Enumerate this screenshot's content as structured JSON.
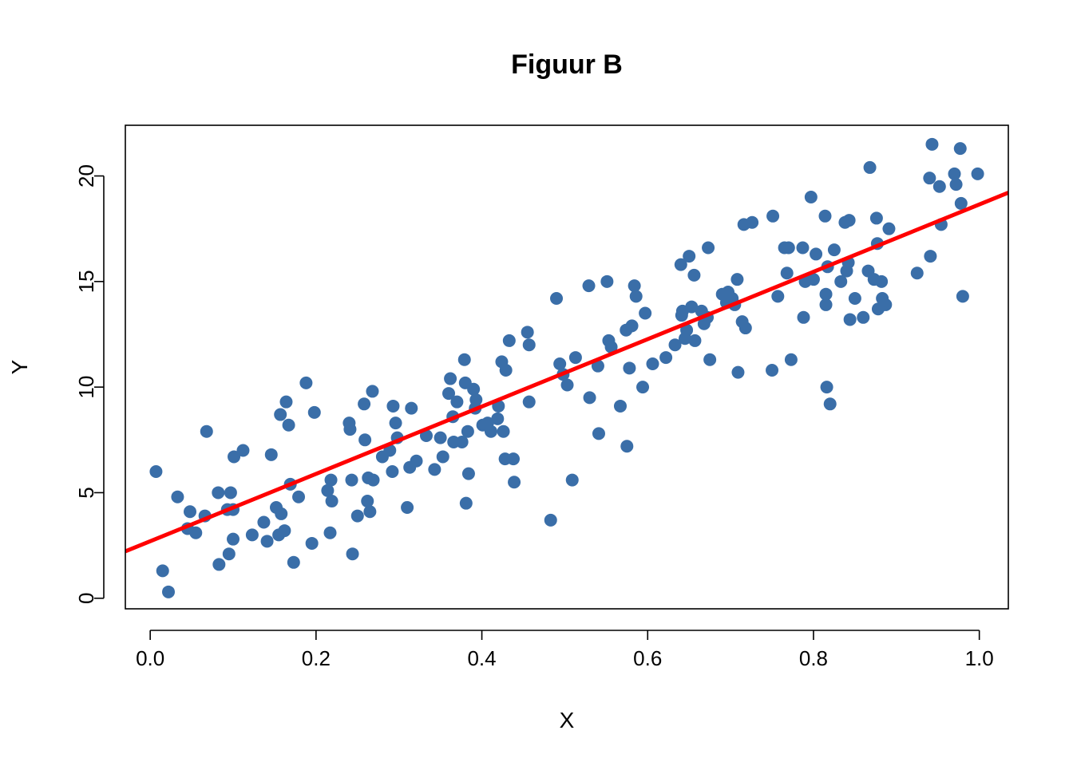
{
  "chart_data": {
    "type": "scatter",
    "title": "Figuur B",
    "xlabel": "X",
    "ylabel": "Y",
    "xlim": [
      -0.03,
      1.035
    ],
    "ylim": [
      -0.5,
      22.4
    ],
    "xticks": [
      0.0,
      0.2,
      0.4,
      0.6,
      0.8,
      1.0
    ],
    "xtick_labels": [
      "0.0",
      "0.2",
      "0.4",
      "0.6",
      "0.8",
      "1.0"
    ],
    "yticks": [
      0,
      5,
      10,
      15,
      20
    ],
    "ytick_labels": [
      "0",
      "5",
      "10",
      "15",
      "20"
    ],
    "grid": false,
    "point_color": "#3A6EA8",
    "line_color": "#FF0000",
    "regression_line": {
      "intercept": 2.7,
      "slope": 15.95
    },
    "points": [
      [
        0.007,
        6.0
      ],
      [
        0.015,
        1.3
      ],
      [
        0.022,
        0.3
      ],
      [
        0.033,
        4.8
      ],
      [
        0.045,
        3.3
      ],
      [
        0.048,
        4.1
      ],
      [
        0.055,
        3.1
      ],
      [
        0.066,
        3.9
      ],
      [
        0.068,
        7.9
      ],
      [
        0.082,
        5.0
      ],
      [
        0.083,
        1.6
      ],
      [
        0.093,
        4.2
      ],
      [
        0.095,
        2.1
      ],
      [
        0.097,
        5.0
      ],
      [
        0.1,
        4.2
      ],
      [
        0.101,
        6.7
      ],
      [
        0.1,
        2.8
      ],
      [
        0.112,
        7.0
      ],
      [
        0.123,
        3.0
      ],
      [
        0.137,
        3.6
      ],
      [
        0.141,
        2.7
      ],
      [
        0.146,
        6.8
      ],
      [
        0.152,
        4.3
      ],
      [
        0.155,
        3.0
      ],
      [
        0.157,
        8.7
      ],
      [
        0.158,
        4.0
      ],
      [
        0.162,
        3.2
      ],
      [
        0.164,
        9.3
      ],
      [
        0.167,
        8.2
      ],
      [
        0.169,
        5.4
      ],
      [
        0.173,
        1.7
      ],
      [
        0.179,
        4.8
      ],
      [
        0.188,
        10.2
      ],
      [
        0.195,
        2.6
      ],
      [
        0.198,
        8.8
      ],
      [
        0.214,
        5.1
      ],
      [
        0.217,
        3.1
      ],
      [
        0.218,
        5.6
      ],
      [
        0.219,
        4.6
      ],
      [
        0.24,
        8.3
      ],
      [
        0.241,
        8.0
      ],
      [
        0.243,
        5.6
      ],
      [
        0.244,
        2.1
      ],
      [
        0.25,
        3.9
      ],
      [
        0.258,
        9.2
      ],
      [
        0.259,
        7.5
      ],
      [
        0.262,
        4.6
      ],
      [
        0.263,
        5.7
      ],
      [
        0.265,
        4.1
      ],
      [
        0.268,
        9.8
      ],
      [
        0.269,
        5.6
      ],
      [
        0.28,
        6.7
      ],
      [
        0.289,
        7.0
      ],
      [
        0.292,
        6.0
      ],
      [
        0.293,
        9.1
      ],
      [
        0.296,
        8.3
      ],
      [
        0.298,
        7.6
      ],
      [
        0.31,
        4.3
      ],
      [
        0.313,
        6.2
      ],
      [
        0.315,
        9.0
      ],
      [
        0.321,
        6.5
      ],
      [
        0.333,
        7.7
      ],
      [
        0.343,
        6.1
      ],
      [
        0.35,
        7.6
      ],
      [
        0.353,
        6.7
      ],
      [
        0.36,
        9.7
      ],
      [
        0.362,
        10.4
      ],
      [
        0.365,
        8.6
      ],
      [
        0.366,
        7.4
      ],
      [
        0.37,
        9.3
      ],
      [
        0.376,
        7.4
      ],
      [
        0.379,
        11.3
      ],
      [
        0.38,
        10.2
      ],
      [
        0.381,
        4.5
      ],
      [
        0.383,
        7.9
      ],
      [
        0.384,
        5.9
      ],
      [
        0.39,
        9.9
      ],
      [
        0.392,
        9.0
      ],
      [
        0.393,
        9.4
      ],
      [
        0.401,
        8.2
      ],
      [
        0.407,
        8.3
      ],
      [
        0.411,
        7.9
      ],
      [
        0.419,
        8.5
      ],
      [
        0.42,
        9.1
      ],
      [
        0.424,
        11.2
      ],
      [
        0.426,
        7.9
      ],
      [
        0.428,
        6.6
      ],
      [
        0.429,
        10.8
      ],
      [
        0.433,
        12.2
      ],
      [
        0.438,
        6.6
      ],
      [
        0.439,
        5.5
      ],
      [
        0.455,
        12.6
      ],
      [
        0.457,
        12.0
      ],
      [
        0.457,
        9.3
      ],
      [
        0.483,
        3.7
      ],
      [
        0.49,
        14.2
      ],
      [
        0.494,
        11.1
      ],
      [
        0.498,
        10.6
      ],
      [
        0.503,
        10.1
      ],
      [
        0.509,
        5.6
      ],
      [
        0.513,
        11.4
      ],
      [
        0.529,
        14.8
      ],
      [
        0.53,
        9.5
      ],
      [
        0.54,
        11.0
      ],
      [
        0.541,
        7.8
      ],
      [
        0.551,
        15.0
      ],
      [
        0.553,
        12.2
      ],
      [
        0.556,
        11.9
      ],
      [
        0.567,
        9.1
      ],
      [
        0.574,
        12.7
      ],
      [
        0.575,
        7.2
      ],
      [
        0.578,
        10.9
      ],
      [
        0.581,
        12.9
      ],
      [
        0.584,
        14.8
      ],
      [
        0.586,
        14.3
      ],
      [
        0.594,
        10.0
      ],
      [
        0.597,
        13.5
      ],
      [
        0.606,
        11.1
      ],
      [
        0.622,
        11.4
      ],
      [
        0.633,
        12.0
      ],
      [
        0.64,
        15.8
      ],
      [
        0.641,
        13.4
      ],
      [
        0.642,
        13.6
      ],
      [
        0.645,
        12.3
      ],
      [
        0.647,
        12.7
      ],
      [
        0.65,
        16.2
      ],
      [
        0.653,
        13.8
      ],
      [
        0.656,
        15.3
      ],
      [
        0.657,
        12.2
      ],
      [
        0.665,
        13.6
      ],
      [
        0.668,
        13.0
      ],
      [
        0.672,
        13.3
      ],
      [
        0.673,
        16.6
      ],
      [
        0.675,
        11.3
      ],
      [
        0.69,
        14.4
      ],
      [
        0.695,
        14.0
      ],
      [
        0.697,
        14.5
      ],
      [
        0.702,
        14.2
      ],
      [
        0.705,
        13.9
      ],
      [
        0.708,
        15.1
      ],
      [
        0.709,
        10.7
      ],
      [
        0.714,
        13.1
      ],
      [
        0.716,
        17.7
      ],
      [
        0.718,
        12.8
      ],
      [
        0.726,
        17.8
      ],
      [
        0.75,
        10.8
      ],
      [
        0.751,
        18.1
      ],
      [
        0.757,
        14.3
      ],
      [
        0.765,
        16.6
      ],
      [
        0.768,
        15.4
      ],
      [
        0.77,
        16.6
      ],
      [
        0.773,
        11.3
      ],
      [
        0.787,
        16.6
      ],
      [
        0.788,
        13.3
      ],
      [
        0.79,
        15.0
      ],
      [
        0.797,
        19.0
      ],
      [
        0.8,
        15.1
      ],
      [
        0.803,
        16.3
      ],
      [
        0.814,
        18.1
      ],
      [
        0.815,
        14.4
      ],
      [
        0.815,
        13.9
      ],
      [
        0.816,
        10.0
      ],
      [
        0.817,
        15.7
      ],
      [
        0.82,
        9.2
      ],
      [
        0.825,
        16.5
      ],
      [
        0.833,
        15.0
      ],
      [
        0.838,
        17.8
      ],
      [
        0.84,
        15.5
      ],
      [
        0.842,
        15.9
      ],
      [
        0.843,
        17.9
      ],
      [
        0.844,
        13.2
      ],
      [
        0.85,
        14.2
      ],
      [
        0.86,
        13.3
      ],
      [
        0.866,
        15.5
      ],
      [
        0.868,
        20.4
      ],
      [
        0.873,
        15.1
      ],
      [
        0.876,
        18.0
      ],
      [
        0.877,
        16.8
      ],
      [
        0.878,
        13.7
      ],
      [
        0.882,
        15.0
      ],
      [
        0.883,
        14.2
      ],
      [
        0.887,
        13.9
      ],
      [
        0.891,
        17.5
      ],
      [
        0.925,
        15.4
      ],
      [
        0.94,
        19.9
      ],
      [
        0.941,
        16.2
      ],
      [
        0.943,
        21.5
      ],
      [
        0.952,
        19.5
      ],
      [
        0.954,
        17.7
      ],
      [
        0.97,
        20.1
      ],
      [
        0.972,
        19.6
      ],
      [
        0.977,
        21.3
      ],
      [
        0.978,
        18.7
      ],
      [
        0.98,
        14.3
      ],
      [
        0.998,
        20.1
      ]
    ]
  }
}
